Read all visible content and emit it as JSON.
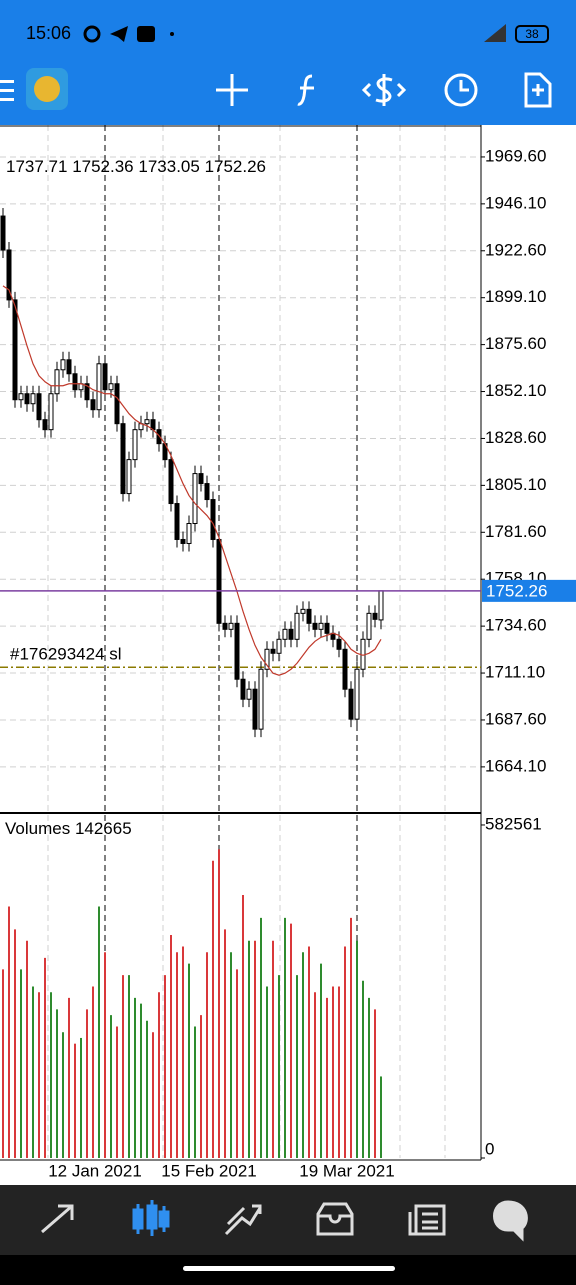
{
  "status_bar": {
    "time": "15:06",
    "battery": "38"
  },
  "chart_data": {
    "type": "candlestick",
    "categories": [
      null,
      null,
      null,
      null,
      null,
      null,
      null,
      null,
      null,
      null,
      null,
      null,
      null,
      null,
      null,
      null,
      null,
      "12 Jan 2021",
      null,
      null,
      null,
      null,
      null,
      null,
      null,
      null,
      null,
      null,
      null,
      null,
      null,
      null,
      null,
      null,
      null,
      null,
      "15 Feb 2021",
      null,
      null,
      null,
      null,
      null,
      null,
      null,
      null,
      null,
      null,
      null,
      null,
      null,
      null,
      null,
      null,
      null,
      null,
      null,
      null,
      null,
      null,
      "19 Mar 2021",
      null,
      null,
      null,
      null
    ],
    "open": [
      1940,
      1923,
      1898,
      1848,
      1851,
      1846,
      1851,
      1838,
      1833,
      1851,
      1863,
      1868,
      1861,
      1853,
      1856,
      1848,
      1843,
      1866,
      1853,
      1856,
      1836,
      1801,
      1818,
      1833,
      1836,
      1838,
      1833,
      1826,
      1818,
      1796,
      1778,
      1776,
      1786,
      1811,
      1806,
      1798,
      1778,
      1736,
      1733,
      1736,
      1708,
      1698,
      1703,
      1683,
      1713,
      1723,
      1721,
      1728,
      1733,
      1728,
      1741,
      1743,
      1736,
      1733,
      1736,
      1731,
      1728,
      1723,
      1703,
      1688,
      1713,
      1728,
      1741,
      1737.71
    ],
    "high": [
      1944,
      1927,
      1902,
      1855,
      1855,
      1855,
      1855,
      1842,
      1855,
      1867,
      1872,
      1872,
      1865,
      1860,
      1860,
      1852,
      1870,
      1870,
      1860,
      1860,
      1840,
      1822,
      1837,
      1840,
      1842,
      1842,
      1837,
      1830,
      1822,
      1800,
      1782,
      1790,
      1815,
      1815,
      1810,
      1802,
      1782,
      1740,
      1740,
      1740,
      1712,
      1707,
      1707,
      1717,
      1727,
      1727,
      1732,
      1737,
      1737,
      1745,
      1747,
      1747,
      1740,
      1740,
      1740,
      1735,
      1732,
      1727,
      1707,
      1717,
      1732,
      1745,
      1745,
      1752.36
    ],
    "low": [
      1919,
      1894,
      1844,
      1844,
      1842,
      1842,
      1834,
      1829,
      1829,
      1847,
      1859,
      1857,
      1849,
      1849,
      1844,
      1839,
      1839,
      1849,
      1849,
      1832,
      1797,
      1797,
      1814,
      1829,
      1832,
      1829,
      1822,
      1814,
      1792,
      1774,
      1772,
      1772,
      1782,
      1802,
      1794,
      1774,
      1732,
      1729,
      1729,
      1704,
      1694,
      1694,
      1679,
      1679,
      1709,
      1717,
      1717,
      1724,
      1724,
      1724,
      1737,
      1732,
      1729,
      1729,
      1727,
      1724,
      1719,
      1699,
      1684,
      1684,
      1709,
      1724,
      1734,
      1733.05
    ],
    "close": [
      1923,
      1898,
      1848,
      1851,
      1846,
      1851,
      1838,
      1833,
      1851,
      1863,
      1868,
      1861,
      1853,
      1856,
      1848,
      1843,
      1866,
      1853,
      1856,
      1836,
      1801,
      1818,
      1833,
      1836,
      1838,
      1833,
      1826,
      1818,
      1796,
      1778,
      1776,
      1786,
      1811,
      1806,
      1798,
      1778,
      1736,
      1733,
      1736,
      1708,
      1698,
      1703,
      1683,
      1713,
      1723,
      1721,
      1728,
      1733,
      1728,
      1741,
      1743,
      1736,
      1733,
      1736,
      1731,
      1728,
      1723,
      1703,
      1688,
      1713,
      1728,
      1741,
      1738,
      1752.26
    ],
    "ylim": [
      1641,
      1985.6
    ],
    "yticks": [
      {
        "value": 1969.6,
        "label": "1969.60"
      },
      {
        "value": 1946.1,
        "label": "1946.10"
      },
      {
        "value": 1922.6,
        "label": "1922.60"
      },
      {
        "value": 1899.1,
        "label": "1899.10"
      },
      {
        "value": 1875.6,
        "label": "1875.60"
      },
      {
        "value": 1852.1,
        "label": "1852.10"
      },
      {
        "value": 1828.6,
        "label": "1828.60"
      },
      {
        "value": 1805.1,
        "label": "1805.10"
      },
      {
        "value": 1781.6,
        "label": "1781.60"
      },
      {
        "value": 1758.1,
        "label": "1758.10"
      },
      {
        "value": 1734.6,
        "label": "1734.60"
      },
      {
        "value": 1711.1,
        "label": "1711.10"
      },
      {
        "value": 1687.6,
        "label": "1687.60"
      },
      {
        "value": 1664.1,
        "label": "1664.10"
      }
    ],
    "grid": true,
    "up_color": "#ffffff",
    "down_color": "#000000",
    "last_price_color": "#7b3fa0",
    "ma": {
      "color": "#c0392b",
      "values": [
        1905,
        1903,
        1895,
        1885,
        1875,
        1866,
        1860,
        1857,
        1855,
        1855,
        1855,
        1856,
        1856,
        1856,
        1855,
        1853,
        1852,
        1851,
        1851,
        1849,
        1845,
        1841,
        1838,
        1836,
        1835,
        1833,
        1830,
        1826,
        1820,
        1813,
        1806,
        1800,
        1796,
        1793,
        1790,
        1786,
        1779,
        1770,
        1761,
        1752,
        1742,
        1733,
        1725,
        1719,
        1715,
        1711,
        1710,
        1711,
        1713,
        1716,
        1720,
        1724,
        1727,
        1729,
        1730,
        1731,
        1730,
        1727,
        1723,
        1721,
        1720,
        1721,
        1723,
        1728
      ]
    },
    "order": {
      "label": "#176293424 sl",
      "price": 1714,
      "color": "#8b7a00"
    },
    "volume": {
      "title": "Volumes",
      "up_color": "#2e8b2e",
      "down_color": "#d9383a",
      "values": [
        330000,
        440000,
        400000,
        330000,
        380000,
        300000,
        290000,
        350000,
        290000,
        260000,
        220000,
        280000,
        200000,
        210000,
        260000,
        300000,
        440000,
        360000,
        250000,
        230000,
        320000,
        320000,
        280000,
        270000,
        240000,
        220000,
        290000,
        320000,
        390000,
        360000,
        370000,
        340000,
        230000,
        250000,
        360000,
        520000,
        540000,
        400000,
        360000,
        330000,
        460000,
        380000,
        380000,
        420000,
        300000,
        380000,
        320000,
        420000,
        410000,
        320000,
        360000,
        370000,
        290000,
        340000,
        280000,
        300000,
        300000,
        370000,
        420000,
        380000,
        310000,
        280000,
        260000,
        142665
      ],
      "ylim": [
        0,
        600000
      ],
      "yticks": [
        0,
        582561
      ]
    }
  }
}
